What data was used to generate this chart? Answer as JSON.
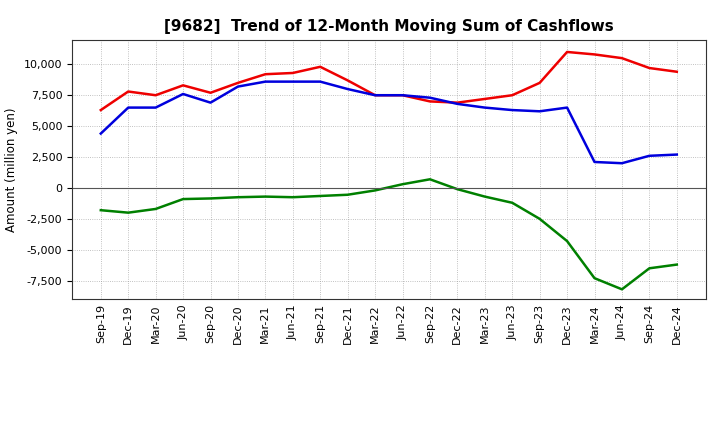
{
  "title": "[9682]  Trend of 12-Month Moving Sum of Cashflows",
  "ylabel": "Amount (million yen)",
  "background_color": "#ffffff",
  "plot_background": "#ffffff",
  "grid_color": "#999999",
  "x_labels": [
    "Sep-19",
    "Dec-19",
    "Mar-20",
    "Jun-20",
    "Sep-20",
    "Dec-20",
    "Mar-21",
    "Jun-21",
    "Sep-21",
    "Dec-21",
    "Mar-22",
    "Jun-22",
    "Sep-22",
    "Dec-22",
    "Mar-23",
    "Jun-23",
    "Sep-23",
    "Dec-23",
    "Mar-24",
    "Jun-24",
    "Sep-24",
    "Dec-24"
  ],
  "operating_cashflow": [
    6300,
    7800,
    7500,
    8300,
    7700,
    8500,
    9200,
    9300,
    9800,
    8700,
    7500,
    7500,
    7000,
    6900,
    7200,
    7500,
    8500,
    11000,
    10800,
    10500,
    9700,
    9400
  ],
  "investing_cashflow": [
    -1800,
    -2000,
    -1700,
    -900,
    -850,
    -750,
    -700,
    -750,
    -650,
    -550,
    -200,
    300,
    700,
    -100,
    -700,
    -1200,
    -2500,
    -4300,
    -7300,
    -8200,
    -6500,
    -6200
  ],
  "free_cashflow": [
    4400,
    6500,
    6500,
    7600,
    6900,
    8200,
    8600,
    8600,
    8600,
    8000,
    7500,
    7500,
    7300,
    6800,
    6500,
    6300,
    6200,
    6500,
    2100,
    2000,
    2600,
    2700
  ],
  "operating_color": "#ee0000",
  "investing_color": "#008000",
  "free_color": "#0000dd",
  "ylim": [
    -9000,
    12000
  ],
  "yticks": [
    -7500,
    -5000,
    -2500,
    0,
    2500,
    5000,
    7500,
    10000
  ],
  "title_fontsize": 11,
  "tick_fontsize": 8,
  "ylabel_fontsize": 8.5
}
